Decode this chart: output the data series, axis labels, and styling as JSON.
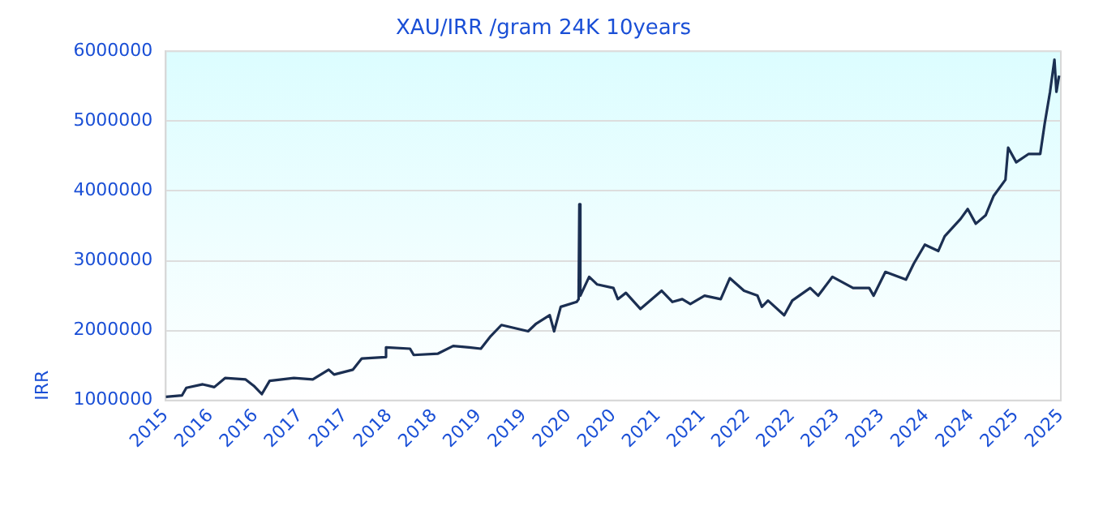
{
  "chart_data": {
    "type": "line",
    "title": "XAU/IRR /gram 24K 10years",
    "ylabel": "IRR",
    "x": [
      "2015-10-20",
      "2015-12-25",
      "2016-01-12",
      "2016-03-19",
      "2016-05-05",
      "2016-06-18",
      "2016-09-10",
      "2016-10-13",
      "2016-11-15",
      "2016-12-17",
      "2017-03-26",
      "2017-06-11",
      "2017-08-15",
      "2017-09-06",
      "2017-11-22",
      "2017-12-28",
      "2018-04-02",
      "2018-04-06",
      "2018-07-13",
      "2018-07-28",
      "2018-11-04",
      "2019-01-05",
      "2019-03-11",
      "2019-04-28",
      "2019-06-07",
      "2019-07-21",
      "2019-11-07",
      "2019-12-10",
      "2020-02-03",
      "2020-02-21",
      "2020-03-19",
      "2020-05-23",
      "2020-05-31",
      "2020-06-03",
      "2020-06-07",
      "2020-07-13",
      "2020-08-15",
      "2020-10-20",
      "2020-11-07",
      "2020-12-10",
      "2021-02-07",
      "2021-05-05",
      "2021-06-18",
      "2021-07-28",
      "2021-08-30",
      "2021-10-27",
      "2022-01-01",
      "2022-02-07",
      "2022-04-06",
      "2022-05-31",
      "2022-06-18",
      "2022-07-13",
      "2022-09-17",
      "2022-10-20",
      "2023-01-01",
      "2023-02-03",
      "2023-04-02",
      "2023-06-25",
      "2023-08-30",
      "2023-09-17",
      "2023-11-04",
      "2024-01-27",
      "2024-02-28",
      "2024-04-13",
      "2024-06-07",
      "2024-07-03",
      "2024-09-06",
      "2024-10-05",
      "2024-11-07",
      "2024-12-17",
      "2025-01-19",
      "2025-03-08",
      "2025-03-19",
      "2025-04-21",
      "2025-06-11",
      "2025-07-28",
      "2025-08-15",
      "2025-09-06",
      "2025-09-24",
      "2025-10-02",
      "2025-10-13"
    ],
    "series": [
      {
        "color": "#1b2f52",
        "values": [
          1050000,
          1070000,
          1180000,
          1230000,
          1190000,
          1320000,
          1300000,
          1210000,
          1090000,
          1280000,
          1320000,
          1300000,
          1440000,
          1370000,
          1440000,
          1600000,
          1620000,
          1760000,
          1740000,
          1650000,
          1670000,
          1780000,
          1760000,
          1740000,
          1920000,
          2080000,
          1990000,
          2100000,
          2220000,
          1990000,
          2340000,
          2410000,
          2450000,
          3810000,
          2500000,
          2770000,
          2660000,
          2610000,
          2450000,
          2540000,
          2310000,
          2570000,
          2410000,
          2450000,
          2380000,
          2500000,
          2450000,
          2750000,
          2570000,
          2500000,
          2340000,
          2430000,
          2220000,
          2430000,
          2610000,
          2500000,
          2770000,
          2610000,
          2610000,
          2500000,
          2840000,
          2730000,
          2960000,
          3230000,
          3140000,
          3350000,
          3600000,
          3740000,
          3530000,
          3650000,
          3930000,
          4160000,
          4620000,
          4410000,
          4530000,
          4530000,
          4960000,
          5420000,
          5880000,
          5420000,
          5650000
        ]
      }
    ],
    "xlim": [
      "2015-10-20",
      "2025-10-20"
    ],
    "xticks": [
      {
        "value": "2015-10-20",
        "label": "2015"
      },
      {
        "value": "2016-04-20",
        "label": "2016"
      },
      {
        "value": "2016-10-20",
        "label": "2016"
      },
      {
        "value": "2017-04-20",
        "label": "2017"
      },
      {
        "value": "2017-10-20",
        "label": "2017"
      },
      {
        "value": "2018-04-20",
        "label": "2018"
      },
      {
        "value": "2018-10-20",
        "label": "2018"
      },
      {
        "value": "2019-04-20",
        "label": "2019"
      },
      {
        "value": "2019-10-20",
        "label": "2019"
      },
      {
        "value": "2020-04-20",
        "label": "2020"
      },
      {
        "value": "2020-10-20",
        "label": "2020"
      },
      {
        "value": "2021-04-20",
        "label": "2021"
      },
      {
        "value": "2021-10-20",
        "label": "2021"
      },
      {
        "value": "2022-04-20",
        "label": "2022"
      },
      {
        "value": "2022-10-20",
        "label": "2022"
      },
      {
        "value": "2023-04-20",
        "label": "2023"
      },
      {
        "value": "2023-10-20",
        "label": "2023"
      },
      {
        "value": "2024-04-20",
        "label": "2024"
      },
      {
        "value": "2024-10-20",
        "label": "2024"
      },
      {
        "value": "2025-04-20",
        "label": "2025"
      },
      {
        "value": "2025-10-20",
        "label": "2025"
      }
    ],
    "ylim": [
      1000000,
      6000000
    ],
    "yticks": [
      1000000,
      2000000,
      3000000,
      4000000,
      5000000,
      6000000
    ],
    "grid": "y",
    "legend": false,
    "marker": "none",
    "line_style": "solid"
  }
}
